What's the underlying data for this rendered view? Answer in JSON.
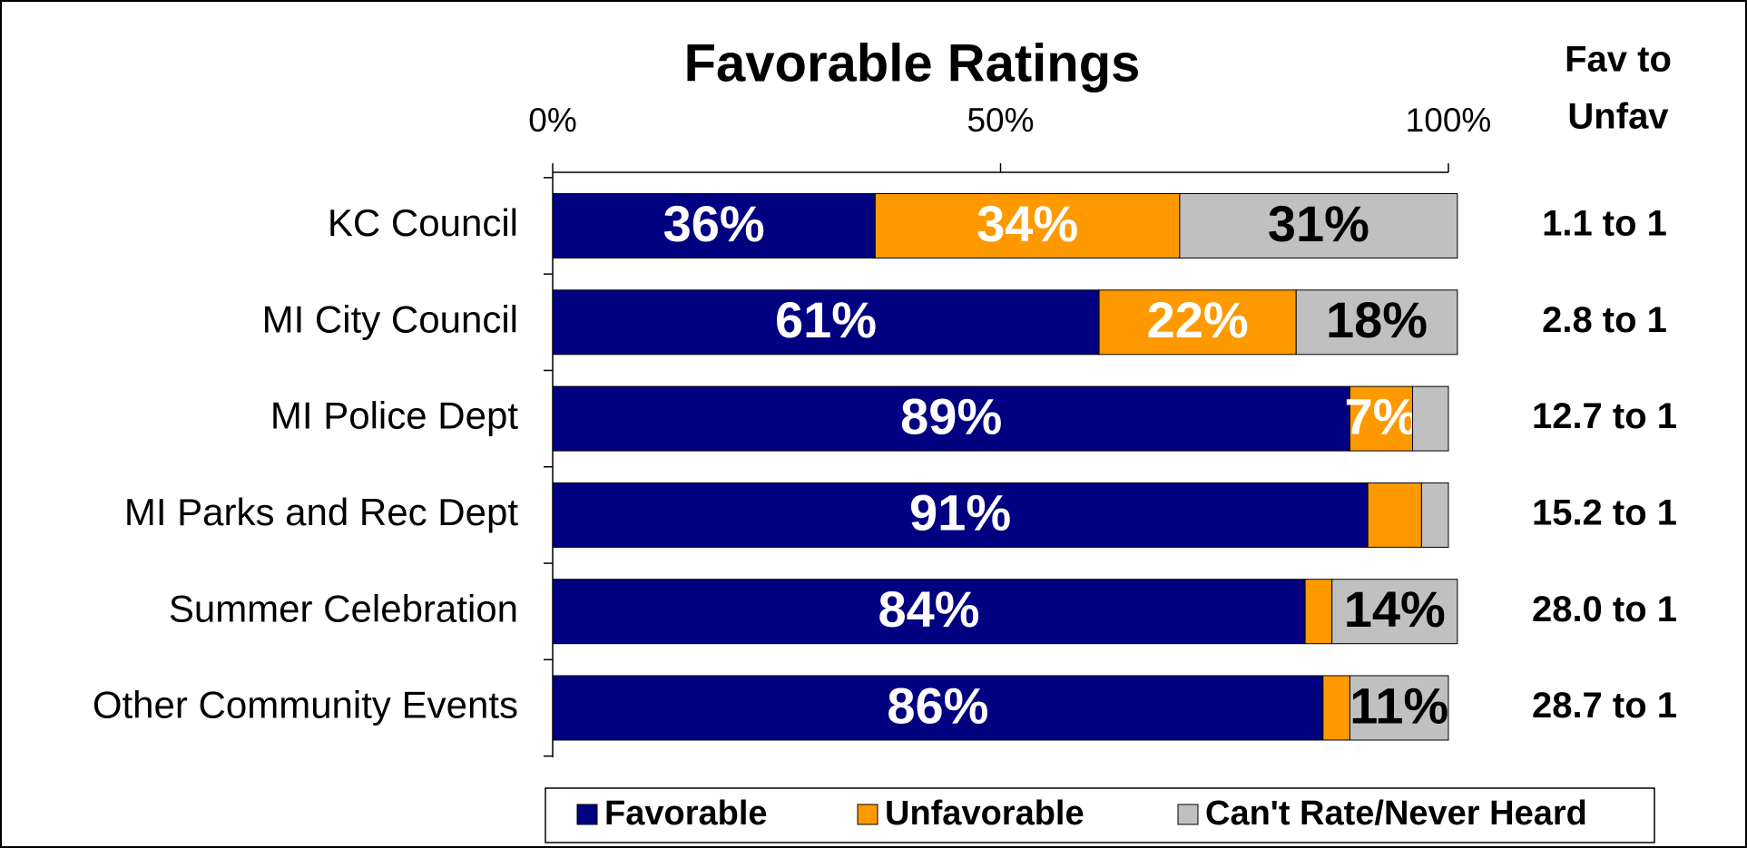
{
  "chart_data": {
    "type": "stacked_barh",
    "title": "Favorable Ratings",
    "categories": [
      "KC Council",
      "MI City Council",
      "MI Police Dept",
      "MI Parks and Rec Dept",
      "Summer Celebration",
      "Other Community Events"
    ],
    "series": [
      {
        "name": "Favorable",
        "color": "#000080",
        "label_color": "#ffffff",
        "values": [
          36,
          61,
          89,
          91,
          84,
          86
        ],
        "value_labels": [
          "36%",
          "61%",
          "89%",
          "91%",
          "84%",
          "86%"
        ]
      },
      {
        "name": "Unfavorable",
        "color": "#ff9900",
        "label_color": "#ffffff",
        "values": [
          34,
          22,
          7,
          6,
          3,
          3
        ],
        "value_labels": [
          "34%",
          "22%",
          "7%",
          null,
          null,
          null
        ]
      },
      {
        "name": "Can't Rate/Never Heard",
        "color": "#c0c0c0",
        "label_color": "#000000",
        "values": [
          31,
          18,
          4,
          3,
          14,
          11
        ],
        "value_labels": [
          "31%",
          "18%",
          null,
          null,
          "14%",
          "11%"
        ]
      }
    ],
    "xlim": [
      0,
      100
    ],
    "xticks": [
      {
        "value": 0,
        "label": "0%"
      },
      {
        "value": 50,
        "label": "50%"
      },
      {
        "value": 100,
        "label": "100%"
      }
    ],
    "ratio_header": [
      "Fav to",
      "Unfav"
    ],
    "ratios": [
      "1.1 to 1",
      "2.8 to 1",
      "12.7 to 1",
      "15.2 to 1",
      "28.0 to 1",
      "28.7 to 1"
    ],
    "legend": "bottom"
  }
}
